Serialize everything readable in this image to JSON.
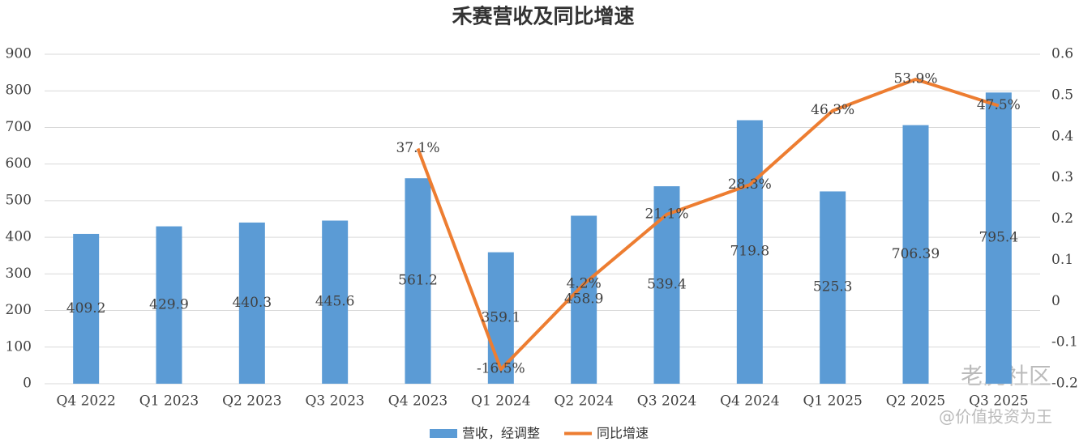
{
  "chart_data": {
    "type": "bar-line",
    "title": "禾赛营收及同比增速",
    "categories": [
      "Q4 2022",
      "Q1 2023",
      "Q2 2023",
      "Q3 2023",
      "Q4 2023",
      "Q1 2024",
      "Q2 2024",
      "Q3 2024",
      "Q4 2024",
      "Q1 2025",
      "Q2 2025",
      "Q3 2025"
    ],
    "series": [
      {
        "name": "营收，经调整",
        "type": "bar",
        "color": "#5b9bd5",
        "axis": "y",
        "values": [
          409.2,
          429.9,
          440.3,
          445.6,
          561.2,
          359.1,
          458.9,
          539.4,
          719.8,
          525.3,
          706.39,
          795.4
        ]
      },
      {
        "name": "同比增速",
        "type": "line",
        "color": "#ed7d31",
        "axis": "y2",
        "values": [
          null,
          null,
          null,
          null,
          0.371,
          -0.165,
          0.042,
          0.211,
          0.283,
          0.463,
          0.539,
          0.475
        ],
        "value_labels": [
          null,
          null,
          null,
          null,
          "37.1%",
          "-16.5%",
          "4.2%",
          "21.1%",
          "28.3%",
          "46.3%",
          "53.9%",
          "47.5%"
        ]
      }
    ],
    "ylim": [
      0,
      900
    ],
    "yticks": [
      0,
      100,
      200,
      300,
      400,
      500,
      600,
      700,
      800,
      900
    ],
    "y2lim": [
      -0.2,
      0.6
    ],
    "y2ticks": [
      -0.2,
      -0.1,
      0,
      0.1,
      0.2,
      0.3,
      0.4,
      0.5,
      0.6
    ],
    "grid": true,
    "legend": "bottom",
    "watermark": [
      "老虎社区",
      "@价值投资为王"
    ]
  }
}
